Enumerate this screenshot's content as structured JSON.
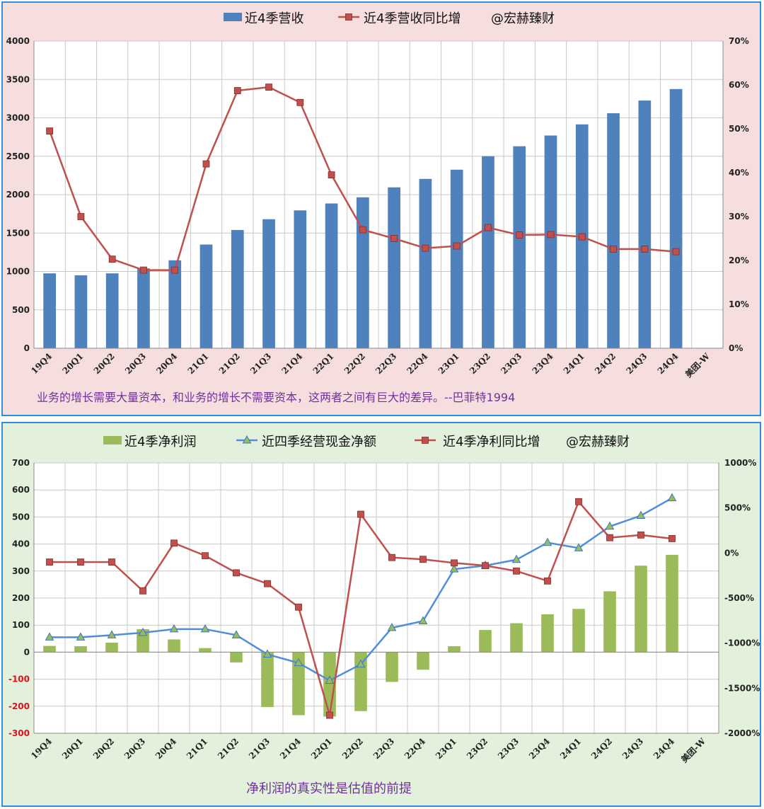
{
  "chart_data": [
    {
      "type": "bar+line",
      "categories": [
        "19Q4",
        "20Q1",
        "20Q2",
        "20Q3",
        "20Q4",
        "21Q1",
        "21Q2",
        "21Q3",
        "21Q4",
        "22Q1",
        "22Q2",
        "22Q3",
        "22Q4",
        "23Q1",
        "23Q2",
        "23Q3",
        "23Q4",
        "24Q1",
        "24Q2",
        "24Q3",
        "24Q4",
        "美团-W"
      ],
      "legend": [
        "近4季营收",
        "近4季营收同比增",
        "@宏赫臻财"
      ],
      "series": [
        {
          "name": "近4季营收",
          "type": "bar",
          "axis": "left",
          "color": "#4f81bd",
          "values": [
            975,
            950,
            975,
            1040,
            1145,
            1350,
            1540,
            1680,
            1795,
            1885,
            1965,
            2095,
            2205,
            2325,
            2500,
            2630,
            2770,
            2915,
            3060,
            3225,
            3375,
            null
          ]
        },
        {
          "name": "近4季营收同比增",
          "type": "line",
          "axis": "right",
          "color": "#c0504d",
          "values": [
            49.5,
            30.0,
            20.3,
            17.8,
            17.8,
            42.0,
            58.7,
            59.5,
            56.0,
            39.5,
            27.0,
            25.0,
            22.8,
            23.3,
            27.5,
            25.8,
            25.9,
            25.4,
            22.6,
            22.6,
            22.0,
            null
          ]
        }
      ],
      "yleft": {
        "min": 0,
        "max": 4000,
        "step": 500,
        "ticks": [
          "0",
          "500",
          "1000",
          "1500",
          "2000",
          "2500",
          "3000",
          "3500",
          "4000"
        ]
      },
      "yright": {
        "min": 0,
        "max": 70,
        "step": 10,
        "ticks": [
          "0%",
          "10%",
          "20%",
          "30%",
          "40%",
          "50%",
          "60%",
          "70%"
        ]
      },
      "annotation": "业务的增长需要大量资本，和业务的增长不需要资本，这两者之间有巨大的差异。--巴菲特1994",
      "grid": true,
      "legend_position": "top"
    },
    {
      "type": "bar+line",
      "categories": [
        "19Q4",
        "20Q1",
        "20Q2",
        "20Q3",
        "20Q4",
        "21Q1",
        "21Q2",
        "21Q3",
        "21Q4",
        "22Q1",
        "22Q2",
        "22Q3",
        "22Q4",
        "23Q1",
        "23Q2",
        "23Q3",
        "23Q4",
        "24Q1",
        "24Q2",
        "24Q3",
        "24Q4",
        "美团-W"
      ],
      "legend": [
        "近4季净利润",
        "近四季经营现金净额",
        "近4季净利同比增",
        "@宏赫臻财"
      ],
      "series": [
        {
          "name": "近4季净利润",
          "type": "bar",
          "axis": "left",
          "color": "#9bbb59",
          "values": [
            23,
            22,
            35,
            85,
            47,
            15,
            -38,
            -203,
            -233,
            -238,
            -218,
            -110,
            -65,
            22,
            82,
            107,
            140,
            160,
            225,
            320,
            360,
            null
          ]
        },
        {
          "name": "近四季经营现金净额",
          "type": "line",
          "axis": "left",
          "color": "#4f8fd8",
          "values": [
            55,
            55,
            63,
            72,
            85,
            85,
            63,
            -8,
            -40,
            -105,
            -45,
            90,
            115,
            307,
            320,
            342,
            405,
            385,
            465,
            505,
            570,
            null
          ]
        },
        {
          "name": "近4季净利同比增",
          "type": "line",
          "axis": "right",
          "color": "#c0504d",
          "values": [
            -100,
            -100,
            -100,
            -420,
            110,
            -30,
            -220,
            -340,
            -600,
            -1800,
            430,
            -50,
            -70,
            -110,
            -140,
            -200,
            -310,
            570,
            170,
            200,
            160,
            null
          ]
        }
      ],
      "yleft": {
        "min": -300,
        "max": 700,
        "step": 100,
        "ticks": [
          "-300",
          "-200",
          "-100",
          "0",
          "100",
          "200",
          "300",
          "400",
          "500",
          "600",
          "700"
        ]
      },
      "yright": {
        "min": -2000,
        "max": 1000,
        "step": 500,
        "ticks": [
          "-2000%",
          "-1500%",
          "-1000%",
          "-500%",
          "0%",
          "500%",
          "1000%"
        ]
      },
      "annotation": "净利润的真实性是估值的前提",
      "grid": true,
      "legend_position": "top"
    }
  ]
}
